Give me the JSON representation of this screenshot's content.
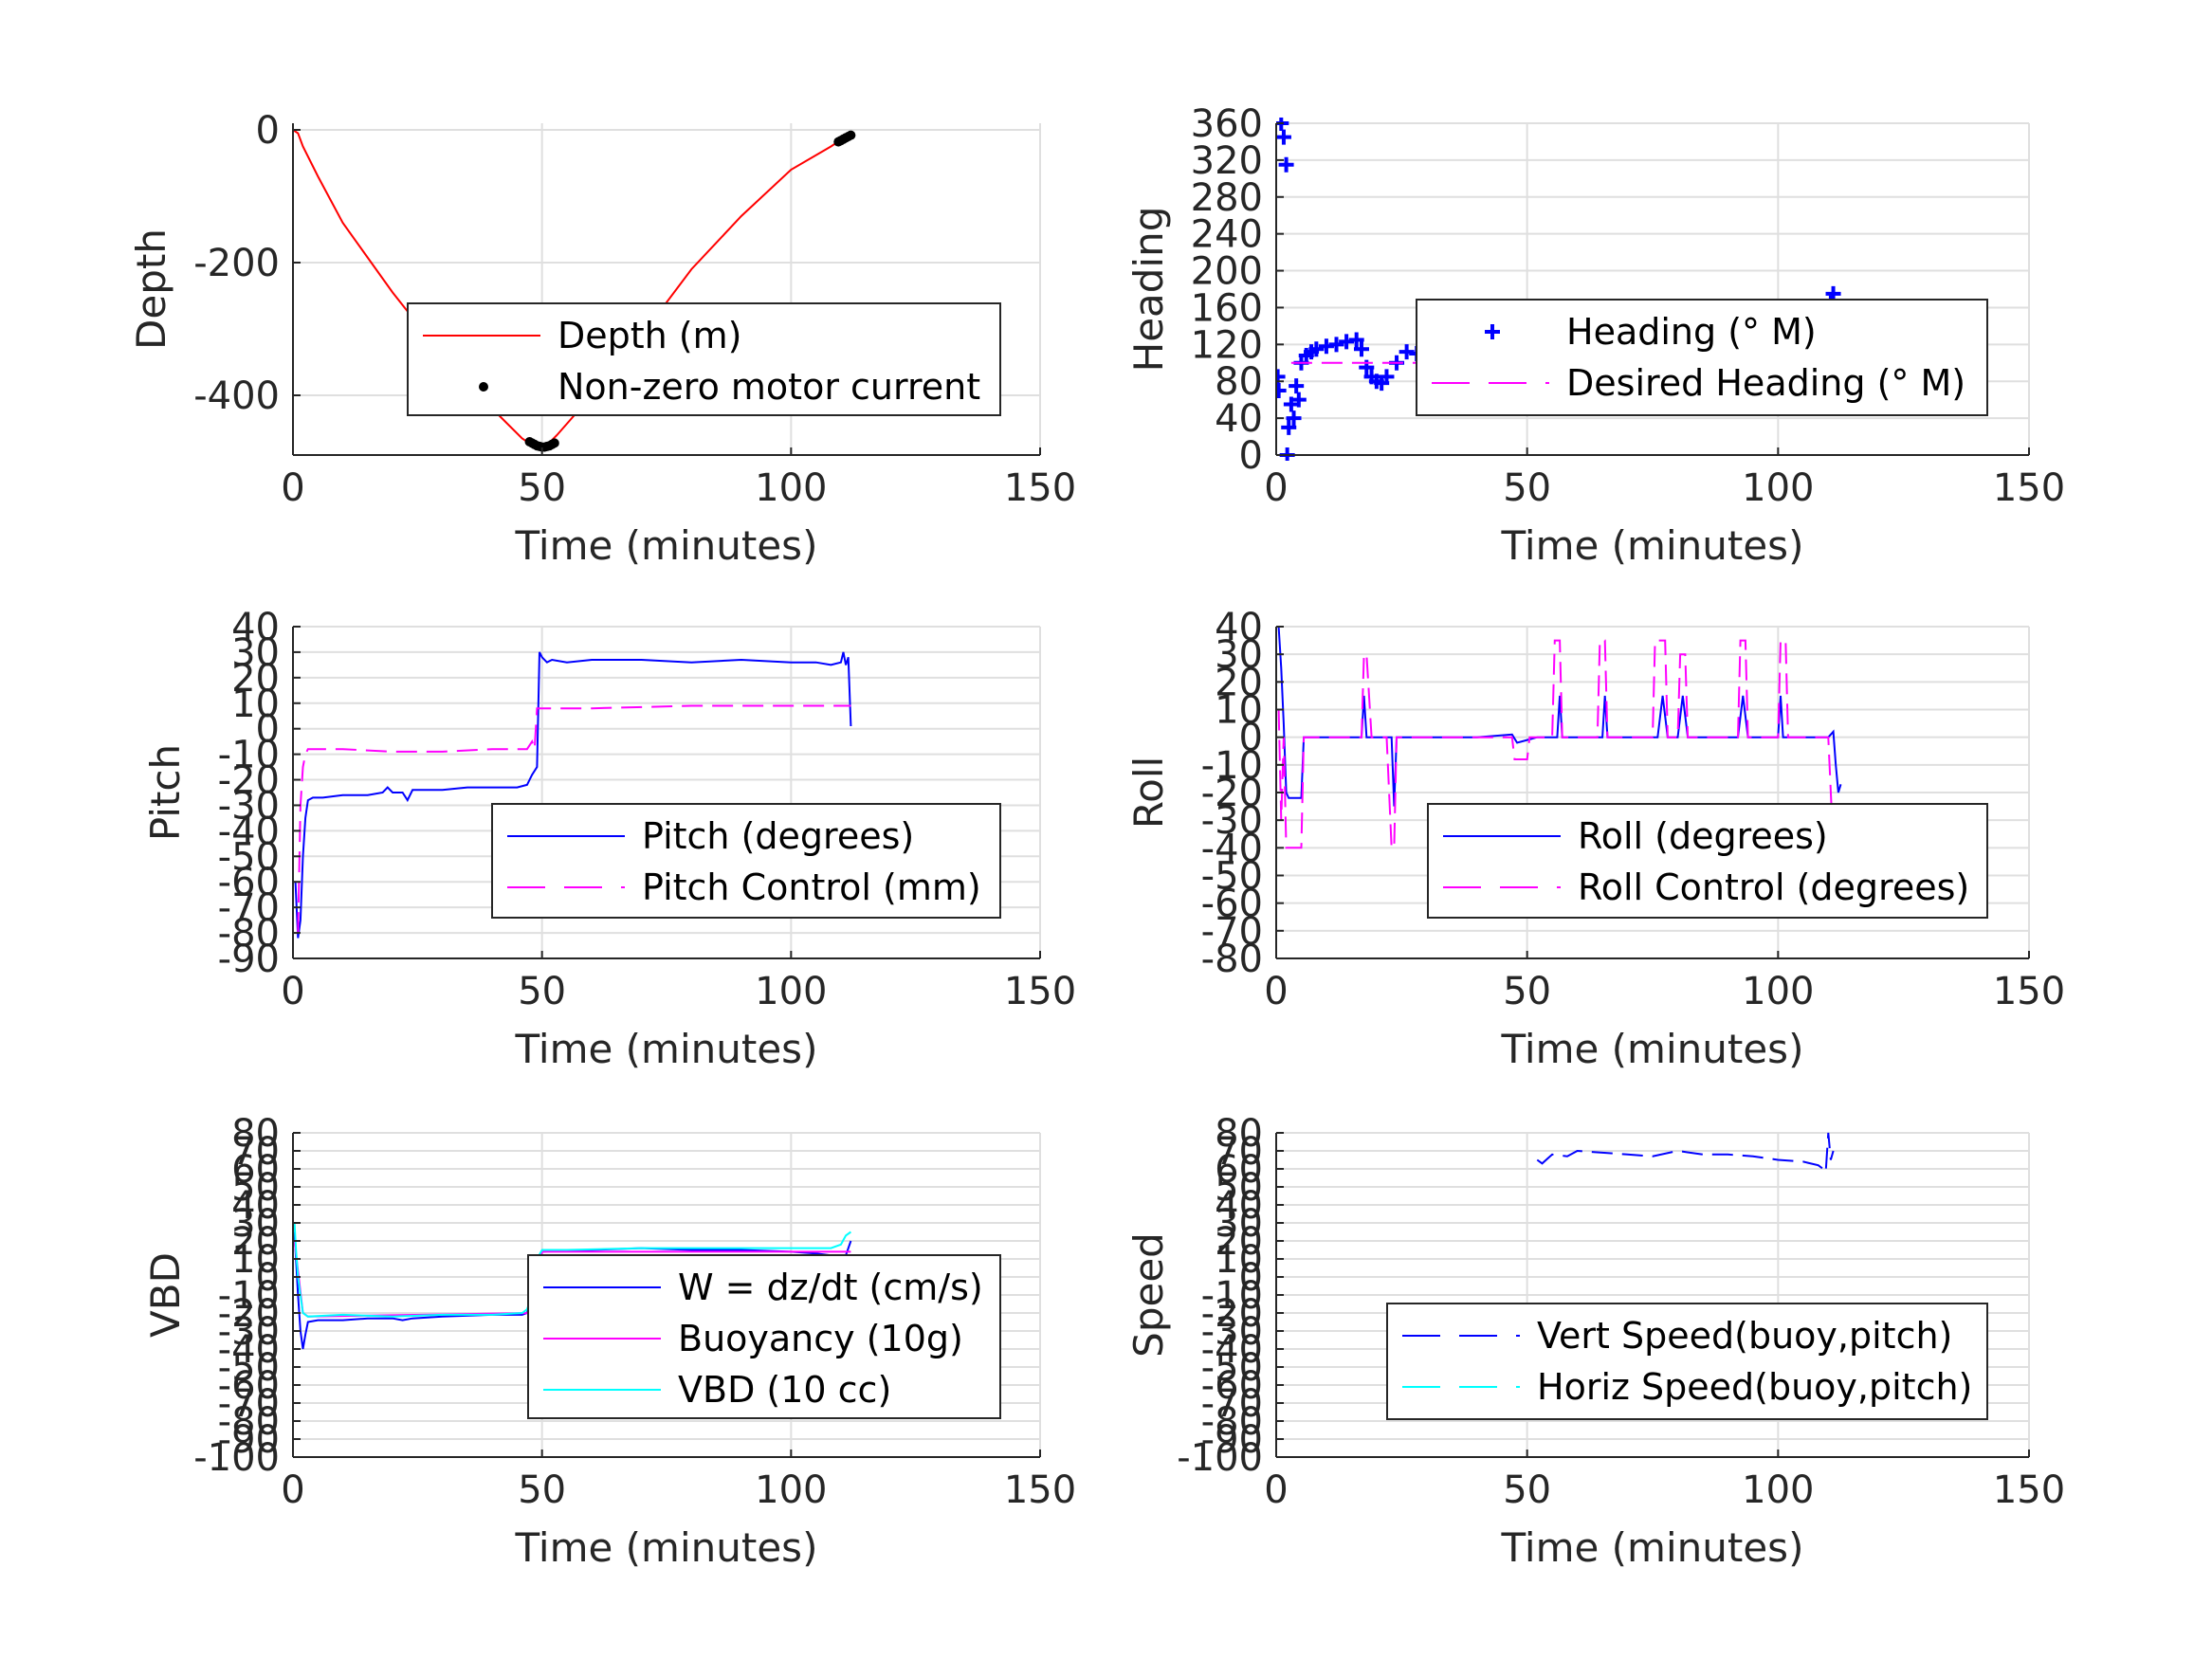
{
  "chart_data": [
    {
      "type": "line",
      "xlabel": "Time (minutes)",
      "ylabel": "Depth",
      "xlim": [
        0,
        150
      ],
      "ylim": [
        -490,
        10
      ],
      "xticks": [
        "0",
        "50",
        "100",
        "150"
      ],
      "yticks": [
        "0",
        "-200",
        "-400"
      ],
      "grid": true,
      "legend_placement": "center",
      "series": [
        {
          "name": "Depth (m)",
          "style": "line",
          "color": "#ff0000",
          "x": [
            0,
            1,
            2,
            5,
            10,
            20,
            30,
            40,
            46,
            48,
            49.5,
            51,
            53,
            60,
            70,
            80,
            90,
            100,
            108,
            111,
            112
          ],
          "y": [
            0,
            -5,
            -25,
            -70,
            -140,
            -245,
            -340,
            -420,
            -465,
            -475,
            -478,
            -475,
            -460,
            -400,
            -310,
            -210,
            -130,
            -60,
            -25,
            -10,
            -5
          ]
        },
        {
          "name": "Non-zero motor current",
          "style": "dots",
          "color": "#000000",
          "x": [
            38,
            47.5,
            48,
            48.5,
            49,
            49.5,
            50,
            50.5,
            51,
            51.5,
            52,
            52.5,
            109.5,
            110,
            110.5,
            111,
            111.5,
            112
          ],
          "y": [
            -380,
            -470,
            -472,
            -474,
            -476,
            -477,
            -478,
            -478,
            -477,
            -476,
            -474,
            -472,
            -18,
            -16,
            -14,
            -12,
            -10,
            -8
          ]
        }
      ]
    },
    {
      "type": "scatter",
      "xlabel": "Time (minutes)",
      "ylabel": "Heading",
      "xlim": [
        0,
        150
      ],
      "ylim": [
        0,
        360
      ],
      "xticks": [
        "0",
        "50",
        "100",
        "150"
      ],
      "yticks": [
        "0",
        "40",
        "80",
        "120",
        "160",
        "200",
        "240",
        "280",
        "320",
        "360"
      ],
      "grid": true,
      "legend_placement": "center",
      "series": [
        {
          "name": "Heading (° M)",
          "style": "plus",
          "color": "#0000ff",
          "x": [
            0.3,
            0.5,
            1,
            1.5,
            2,
            2.2,
            2.5,
            3,
            3.5,
            4,
            4.5,
            5,
            6,
            7,
            8,
            10,
            12,
            14,
            16,
            17,
            18,
            19,
            20,
            21,
            22,
            24,
            26,
            28,
            30,
            32,
            35,
            38,
            41,
            44,
            47,
            50,
            53,
            56,
            59,
            62,
            65,
            68,
            71,
            74,
            75,
            77,
            80,
            83,
            86,
            89,
            92,
            95,
            98,
            101,
            104,
            106,
            108,
            109,
            110,
            110.5,
            111,
            111.5,
            112,
            112.5
          ],
          "y": [
            85,
            70,
            360,
            345,
            315,
            0,
            30,
            55,
            40,
            75,
            60,
            100,
            108,
            112,
            115,
            118,
            120,
            123,
            125,
            115,
            95,
            85,
            80,
            78,
            85,
            100,
            112,
            110,
            108,
            105,
            110,
            100,
            98,
            108,
            105,
            100,
            110,
            98,
            92,
            105,
            100,
            95,
            88,
            85,
            70,
            88,
            92,
            100,
            95,
            105,
            88,
            95,
            90,
            100,
            92,
            100,
            112,
            120,
            130,
            165,
            175,
            150,
            160,
            155
          ]
        },
        {
          "name": "Desired Heading (° M)",
          "style": "dashed",
          "color": "#ff00ff",
          "x": [
            3,
            112
          ],
          "y": [
            100,
            100
          ]
        }
      ]
    },
    {
      "type": "line",
      "xlabel": "Time (minutes)",
      "ylabel": "Pitch",
      "xlim": [
        0,
        150
      ],
      "ylim": [
        -90,
        40
      ],
      "xticks": [
        "0",
        "50",
        "100",
        "150"
      ],
      "yticks": [
        "40",
        "30",
        "20",
        "10",
        "0",
        "-10",
        "-20",
        "-30",
        "-40",
        "-50",
        "-60",
        "-70",
        "-80",
        "-90"
      ],
      "grid": true,
      "legend_placement": "bottom-right",
      "series": [
        {
          "name": "Pitch (degrees)",
          "style": "line",
          "color": "#0000ff",
          "x": [
            0.5,
            1,
            1.5,
            2,
            2.5,
            3,
            4,
            6,
            10,
            15,
            18,
            19,
            20,
            22,
            23,
            24,
            30,
            35,
            40,
            45,
            47,
            48,
            49,
            49.5,
            50,
            51,
            52,
            55,
            60,
            70,
            80,
            90,
            100,
            105,
            108,
            110,
            110.5,
            111,
            111.5,
            112
          ],
          "y": [
            -60,
            -82,
            -75,
            -50,
            -35,
            -28,
            -27,
            -27,
            -26,
            -26,
            -25,
            -23,
            -25,
            -25,
            -28,
            -24,
            -24,
            -23,
            -23,
            -23,
            -22,
            -18,
            -15,
            30,
            28,
            26,
            27,
            26,
            27,
            27,
            26,
            27,
            26,
            26,
            25,
            26,
            30,
            25,
            28,
            1
          ]
        },
        {
          "name": "Pitch Control (mm)",
          "style": "dashed",
          "color": "#ff00ff",
          "x": [
            1,
            1.5,
            2,
            2.5,
            3,
            10,
            20,
            30,
            40,
            47,
            48,
            48.5,
            49,
            50,
            60,
            80,
            100,
            112
          ],
          "y": [
            -80,
            -30,
            -15,
            -10,
            -8,
            -8,
            -9,
            -9,
            -8,
            -8,
            -5,
            -8,
            8,
            8,
            8,
            9,
            9,
            9
          ]
        }
      ]
    },
    {
      "type": "line",
      "xlabel": "Time (minutes)",
      "ylabel": "Roll",
      "xlim": [
        0,
        150
      ],
      "ylim": [
        -80,
        40
      ],
      "xticks": [
        "0",
        "50",
        "100",
        "150"
      ],
      "yticks": [
        "40",
        "30",
        "20",
        "10",
        "0",
        "-10",
        "-20",
        "-30",
        "-40",
        "-50",
        "-60",
        "-70",
        "-80"
      ],
      "grid": true,
      "legend_placement": "bottom-right",
      "series": [
        {
          "name": "Roll (degrees)",
          "style": "line",
          "color": "#0000ff",
          "x": [
            0.5,
            1,
            1.5,
            2,
            2.5,
            3,
            4,
            5,
            5.5,
            6,
            10,
            15,
            17,
            17.5,
            18,
            18.5,
            20,
            22,
            23,
            23.5,
            24,
            25,
            30,
            40,
            47,
            48,
            50,
            52,
            55,
            56,
            56.5,
            57,
            60,
            64,
            65,
            65.5,
            66,
            70,
            75,
            76,
            77,
            78,
            80,
            81,
            82,
            90,
            92,
            93,
            94,
            100,
            100.5,
            101,
            102,
            108,
            110,
            111,
            111.5,
            112,
            112.5
          ],
          "y": [
            40,
            25,
            5,
            -20,
            -22,
            -22,
            -22,
            -22,
            0,
            0,
            0,
            0,
            0,
            15,
            0,
            0,
            0,
            0,
            0,
            -25,
            0,
            0,
            0,
            0,
            1,
            -2,
            -1,
            0,
            0,
            0,
            15,
            0,
            0,
            0,
            0,
            15,
            0,
            0,
            0,
            0,
            15,
            0,
            0,
            15,
            0,
            0,
            0,
            15,
            0,
            0,
            15,
            0,
            0,
            0,
            0,
            2,
            -10,
            -20,
            -17
          ]
        },
        {
          "name": "Roll Control (degrees)",
          "style": "dashed",
          "color": "#ff00ff",
          "x": [
            0.5,
            1,
            1.5,
            2,
            3,
            4,
            5,
            5.5,
            6,
            15,
            17,
            17.5,
            18,
            19,
            22,
            23,
            23.5,
            24,
            47,
            47.5,
            50,
            50.5,
            55,
            55.5,
            56.5,
            57,
            64,
            64.5,
            65.5,
            66,
            75,
            75.5,
            77.5,
            78,
            80,
            80.5,
            81.5,
            82,
            92,
            92.5,
            93.5,
            94,
            100,
            100.5,
            101.5,
            102,
            110,
            111,
            112
          ],
          "y": [
            10,
            -30,
            0,
            -40,
            -40,
            -40,
            -40,
            0,
            0,
            0,
            0,
            30,
            30,
            0,
            0,
            -40,
            -40,
            0,
            0,
            -8,
            -8,
            0,
            0,
            35,
            35,
            0,
            0,
            35,
            35,
            0,
            0,
            35,
            35,
            0,
            0,
            30,
            30,
            0,
            0,
            35,
            35,
            0,
            0,
            35,
            35,
            0,
            0,
            -40,
            -40
          ]
        }
      ]
    },
    {
      "type": "line",
      "xlabel": "Time (minutes)",
      "ylabel": "VBD",
      "xlim": [
        0,
        150
      ],
      "ylim": [
        -100,
        80
      ],
      "xticks": [
        "0",
        "50",
        "100",
        "150"
      ],
      "yticks": [
        "80",
        "70",
        "60",
        "50",
        "40",
        "30",
        "20",
        "10",
        "0",
        "-10",
        "-20",
        "-30",
        "-40",
        "-50",
        "-60",
        "-70",
        "-80",
        "-90",
        "-100"
      ],
      "grid": true,
      "legend_placement": "center-right",
      "series": [
        {
          "name": "W = dz/dt (cm/s)",
          "style": "line",
          "color": "#0000ff",
          "x": [
            0.3,
            0.6,
            1,
            1.5,
            2,
            2.5,
            3,
            5,
            10,
            15,
            20,
            22,
            24,
            30,
            40,
            46,
            47,
            48,
            50,
            55,
            60,
            70,
            80,
            90,
            100,
            105,
            108,
            109,
            110,
            111,
            112
          ],
          "y": [
            25,
            10,
            -10,
            -30,
            -40,
            -32,
            -25,
            -24,
            -24,
            -23,
            -23,
            -24,
            -23,
            -22,
            -21,
            -21,
            -20,
            -12,
            14,
            15,
            15,
            16,
            15,
            15,
            14,
            13,
            12,
            10,
            9,
            12,
            20
          ]
        },
        {
          "name": "Buoyancy (10g)",
          "style": "line",
          "color": "#ff00ff",
          "x": [
            0.3,
            2,
            3,
            48,
            50,
            112
          ],
          "y": [
            20,
            -20,
            -22,
            -20,
            14,
            14
          ]
        },
        {
          "name": "VBD (10 cc)",
          "style": "line",
          "color": "#00ffff",
          "x": [
            0.3,
            0.6,
            1,
            2,
            3,
            10,
            20,
            30,
            40,
            46,
            47,
            48,
            49,
            50,
            55,
            70,
            90,
            105,
            108,
            110,
            111,
            112
          ],
          "y": [
            30,
            15,
            0,
            -20,
            -22,
            -21,
            -22,
            -21,
            -21,
            -20,
            -18,
            -10,
            10,
            15,
            15,
            16,
            16,
            16,
            16,
            18,
            23,
            25
          ]
        }
      ]
    },
    {
      "type": "line",
      "xlabel": "Time (minutes)",
      "ylabel": "Speed",
      "xlim": [
        0,
        150
      ],
      "ylim": [
        -100,
        80
      ],
      "xticks": [
        "0",
        "50",
        "100",
        "150"
      ],
      "yticks": [
        "80",
        "70",
        "60",
        "50",
        "40",
        "30",
        "20",
        "10",
        "0",
        "-10",
        "-20",
        "-30",
        "-40",
        "-50",
        "-60",
        "-70",
        "-80",
        "-90",
        "-100"
      ],
      "grid": true,
      "legend_placement": "bottom-right",
      "series": [
        {
          "name": "Vert Speed(buoy,pitch)",
          "style": "dashed",
          "color": "#0000ff",
          "x": [
            52,
            53,
            55,
            58,
            60,
            65,
            70,
            75,
            80,
            85,
            90,
            95,
            100,
            105,
            108,
            109,
            109.5,
            110,
            110.5,
            111
          ],
          "y": [
            65,
            63,
            68,
            67,
            70,
            69,
            68,
            67,
            70,
            68,
            68,
            67,
            65,
            64,
            62,
            60,
            58,
            80,
            65,
            70
          ]
        },
        {
          "name": "Horiz Speed(buoy,pitch)",
          "style": "dashed",
          "color": "#00ffff",
          "x": [],
          "y": []
        }
      ]
    }
  ]
}
